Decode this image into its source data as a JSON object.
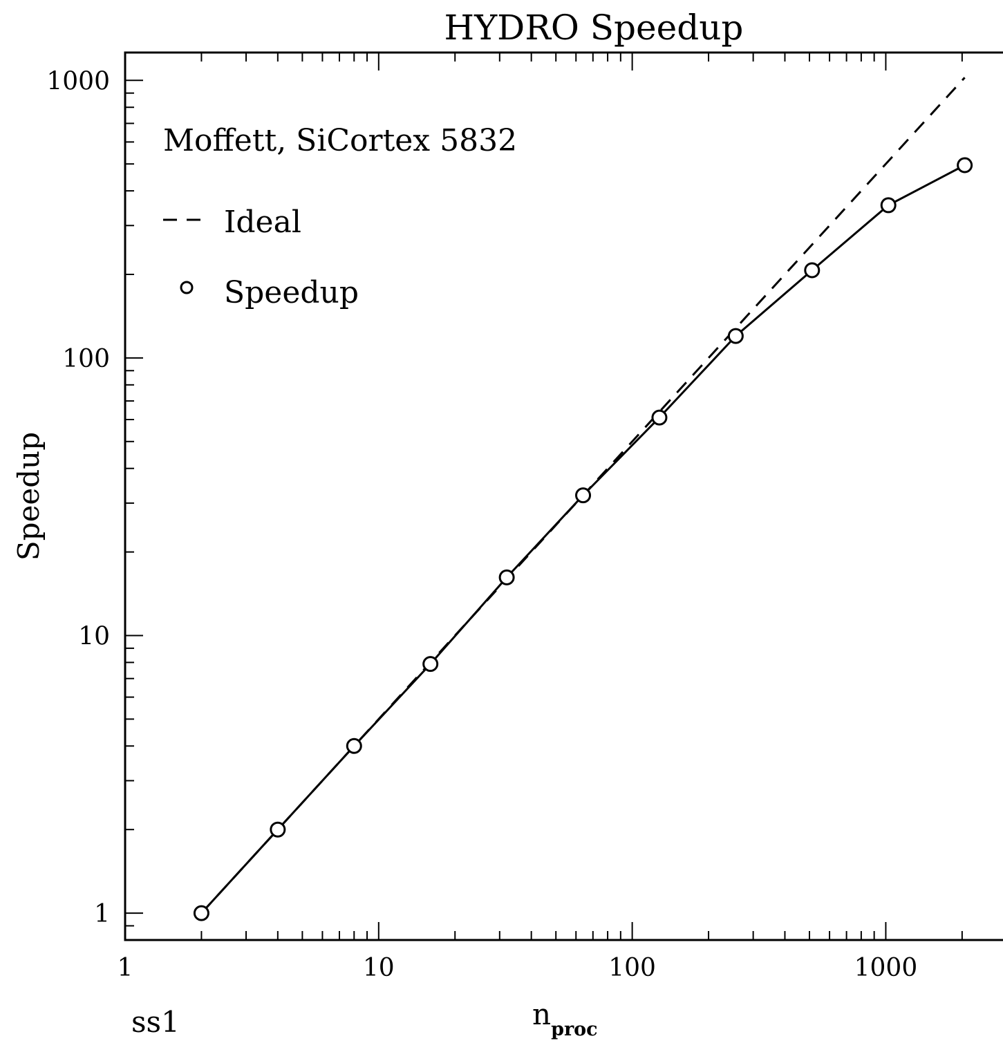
{
  "chart_data": {
    "type": "line",
    "title": "HYDRO Speedup",
    "annotation": "Moffett, SiCortex 5832",
    "corner_label": "ss1",
    "xlabel": "n",
    "xlabel_subscript": "proc",
    "ylabel": "Speedup",
    "xscale": "log",
    "yscale": "log",
    "xlim": [
      1,
      3500
    ],
    "ylim": [
      0.8,
      1260
    ],
    "xticks": [
      {
        "value": 1,
        "label": "1"
      },
      {
        "value": 10,
        "label": "10"
      },
      {
        "value": 100,
        "label": "100"
      },
      {
        "value": 1000,
        "label": "1000"
      }
    ],
    "yticks": [
      {
        "value": 1,
        "label": "1"
      },
      {
        "value": 10,
        "label": "10"
      },
      {
        "value": 100,
        "label": "100"
      },
      {
        "value": 1000,
        "label": "1000"
      }
    ],
    "grid": false,
    "legend_position": "top-left",
    "series": [
      {
        "name": "Ideal",
        "style": "dashed",
        "x": [
          2,
          2048
        ],
        "y": [
          1,
          1024
        ]
      },
      {
        "name": "Speedup",
        "style": "solid-with-circles",
        "x": [
          2,
          4,
          8,
          16,
          32,
          64,
          128,
          256,
          512,
          1024,
          2048
        ],
        "y": [
          1.0,
          2.0,
          4.0,
          7.9,
          16.2,
          32.0,
          61.0,
          120.0,
          207.0,
          355.0,
          495.0
        ]
      }
    ]
  }
}
